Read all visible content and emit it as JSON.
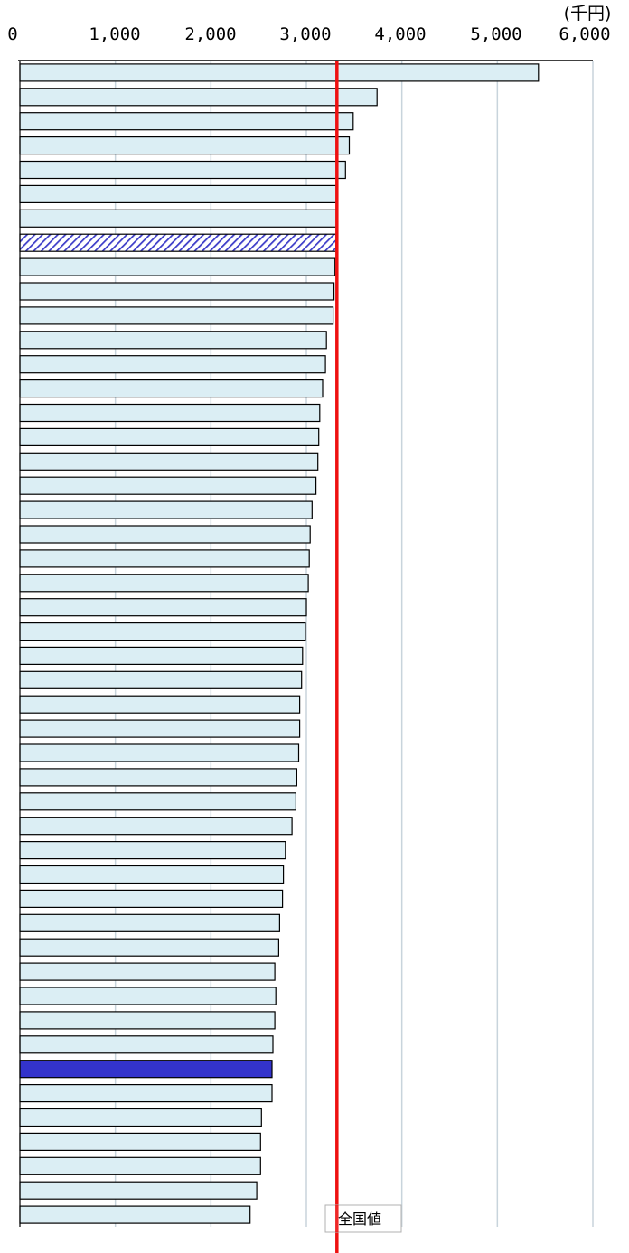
{
  "chart_data": {
    "type": "bar",
    "orientation": "horizontal",
    "unit_label": "(千円)",
    "x_ticks": [
      "0",
      "1,000",
      "2,000",
      "3,000",
      "4,000",
      "5,000",
      "6,000"
    ],
    "xlim": [
      0,
      6000
    ],
    "grid": true,
    "values": [
      5430,
      3740,
      3490,
      3450,
      3410,
      3330,
      3320,
      3310,
      3300,
      3290,
      3280,
      3210,
      3200,
      3170,
      3140,
      3130,
      3120,
      3100,
      3060,
      3040,
      3030,
      3020,
      3000,
      2990,
      2960,
      2950,
      2930,
      2930,
      2920,
      2900,
      2890,
      2850,
      2780,
      2760,
      2750,
      2720,
      2710,
      2670,
      2680,
      2670,
      2650,
      2640,
      2640,
      2530,
      2520,
      2520,
      2480,
      2410
    ],
    "highlight_hatched_index": 7,
    "highlight_solid_index": 41,
    "reference_line": {
      "label": "全国値",
      "value": 3320
    },
    "colors": {
      "bar_fill": "#dbeef4",
      "bar_stroke": "#000000",
      "hatch_color": "#3b3bc8",
      "solid_highlight": "#3333cc",
      "reference_line": "#ee1111",
      "grid": "#c8d4dc"
    }
  }
}
